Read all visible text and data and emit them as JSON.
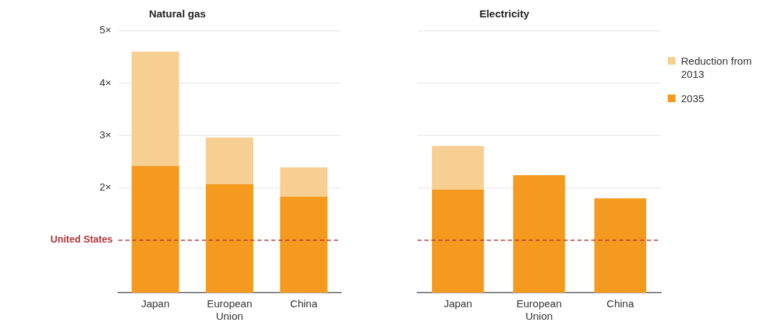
{
  "chart_data": [
    {
      "type": "bar",
      "title": "Natural gas",
      "categories": [
        "Japan",
        "European Union",
        "China"
      ],
      "stacked": true,
      "series": [
        {
          "color": "#f39a1f",
          "values": [
            2.42,
            2.07,
            1.83
          ]
        },
        {
          "color": "#f8cf92",
          "values": [
            2.18,
            0.89,
            0.56
          ]
        }
      ],
      "ylim": [
        0,
        5
      ],
      "yticks": [
        {
          "value": 2,
          "label": "2×"
        },
        {
          "value": 3,
          "label": "3×"
        },
        {
          "value": 4,
          "label": "4×"
        },
        {
          "value": 5,
          "label": "5×"
        }
      ],
      "grid": "y",
      "ref_lines": [
        {
          "axis": "y",
          "value": 1,
          "label": "United States",
          "color": "#b0383a",
          "line_style": "dashed"
        }
      ]
    },
    {
      "type": "bar",
      "title": "Electricity",
      "categories": [
        "Japan",
        "European Union",
        "China"
      ],
      "stacked": true,
      "series": [
        {
          "name": "2035",
          "color": "#f39a1f",
          "values": [
            1.97,
            2.24,
            1.8
          ]
        },
        {
          "name": "Reduction from 2013",
          "color": "#f8cf92",
          "values": [
            0.83,
            0,
            0
          ]
        }
      ],
      "ylim": [
        0,
        5
      ],
      "yticks": [
        {
          "value": 2,
          "label": null
        },
        {
          "value": 3,
          "label": null
        },
        {
          "value": 4,
          "label": null
        },
        {
          "value": 5,
          "label": null
        }
      ],
      "grid": "y",
      "legend": "right",
      "tick_labels": "x",
      "ref_lines": [
        {
          "axis": "y",
          "value": 1,
          "color": "#b0383a",
          "line_style": "dashed"
        }
      ]
    }
  ]
}
